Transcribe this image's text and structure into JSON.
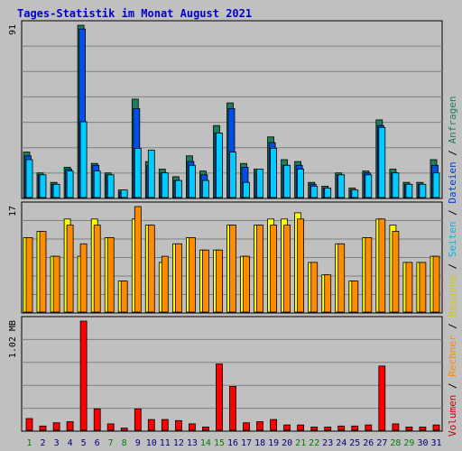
{
  "chart_data": {
    "type": "bar",
    "title": "Tages-Statistik im Monat August 2021",
    "days": [
      "1",
      "2",
      "3",
      "4",
      "5",
      "6",
      "7",
      "8",
      "9",
      "10",
      "11",
      "12",
      "13",
      "14",
      "15",
      "16",
      "17",
      "18",
      "19",
      "20",
      "21",
      "22",
      "23",
      "24",
      "25",
      "26",
      "27",
      "28",
      "29",
      "30",
      "31"
    ],
    "weekend_days": [
      "1",
      "7",
      "8",
      "14",
      "15",
      "21",
      "22",
      "28",
      "29"
    ],
    "panels": [
      {
        "id": "requests",
        "axis_max_label": "91",
        "ymax": 91,
        "series": [
          {
            "name": "Anfragen",
            "color": "#1e7e5a",
            "values": [
              24,
              13,
              8,
              16,
              91,
              18,
              13,
              4,
              52,
              19,
              15,
              11,
              22,
              14,
              38,
              50,
              18,
              15,
              32,
              20,
              19,
              8,
              6,
              13,
              5,
              14,
              41,
              15,
              8,
              8,
              20
            ]
          },
          {
            "name": "Dateien",
            "color": "#0050e6",
            "values": [
              22,
              12,
              7,
              15,
              89,
              17,
              12,
              3,
              47,
              17,
              13,
              9,
              19,
              12,
              34,
              47,
              16,
              14,
              29,
              17,
              17,
              7,
              5,
              12,
              4,
              13,
              38,
              13,
              7,
              7,
              17
            ]
          },
          {
            "name": "Seiten",
            "color": "#00ccff",
            "values": [
              20,
              12,
              7,
              14,
              40,
              14,
              12,
              4,
              26,
              25,
              13,
              9,
              17,
              9,
              34,
              24,
              8,
              15,
              26,
              17,
              15,
              6,
              5,
              12,
              4,
              12,
              37,
              13,
              7,
              7,
              13
            ]
          }
        ]
      },
      {
        "id": "visits",
        "axis_max_label": "17",
        "ymax": 17,
        "series": [
          {
            "name": "Besuche",
            "color": "#ffff00",
            "values": [
              12,
              13,
              9,
              15,
              9,
              15,
              12,
              5,
              15,
              14,
              8,
              11,
              12,
              10,
              10,
              14,
              9,
              14,
              15,
              15,
              16,
              8,
              6,
              11,
              5,
              12,
              15,
              14,
              8,
              8,
              9
            ]
          },
          {
            "name": "Rechner",
            "color": "#ff8c00",
            "values": [
              12,
              13,
              9,
              14,
              11,
              14,
              12,
              5,
              17,
              14,
              9,
              11,
              12,
              10,
              10,
              14,
              9,
              14,
              14,
              14,
              15,
              8,
              6,
              11,
              5,
              12,
              15,
              13,
              8,
              8,
              9
            ]
          }
        ]
      },
      {
        "id": "volume",
        "axis_max_label": "1.02 MB",
        "ymax": 1.02,
        "series": [
          {
            "name": "Volumen",
            "color": "#ff0000",
            "values": [
              0.11,
              0.04,
              0.07,
              0.08,
              1.02,
              0.2,
              0.06,
              0.02,
              0.2,
              0.1,
              0.1,
              0.09,
              0.06,
              0.03,
              0.62,
              0.41,
              0.07,
              0.08,
              0.1,
              0.05,
              0.05,
              0.03,
              0.03,
              0.04,
              0.04,
              0.05,
              0.6,
              0.06,
              0.03,
              0.03,
              0.05
            ]
          }
        ]
      }
    ],
    "legend": [
      "Volumen",
      "Rechner",
      "Besuche",
      "Seiten",
      "Dateien",
      "Anfragen"
    ],
    "legend_separator": " / ",
    "legend_colors": {
      "Volumen": "#cc0000",
      "Rechner": "#ff8c00",
      "Besuche": "#d8c800",
      "Seiten": "#00b8e6",
      "Dateien": "#0040d0",
      "Anfragen": "#1e7e5a"
    },
    "colors": {
      "background": "#c0c0c0",
      "title": "#0000cc",
      "weekday_label": "#000080",
      "weekend_label": "#008000",
      "gridline": "#808080"
    },
    "grid": true
  }
}
